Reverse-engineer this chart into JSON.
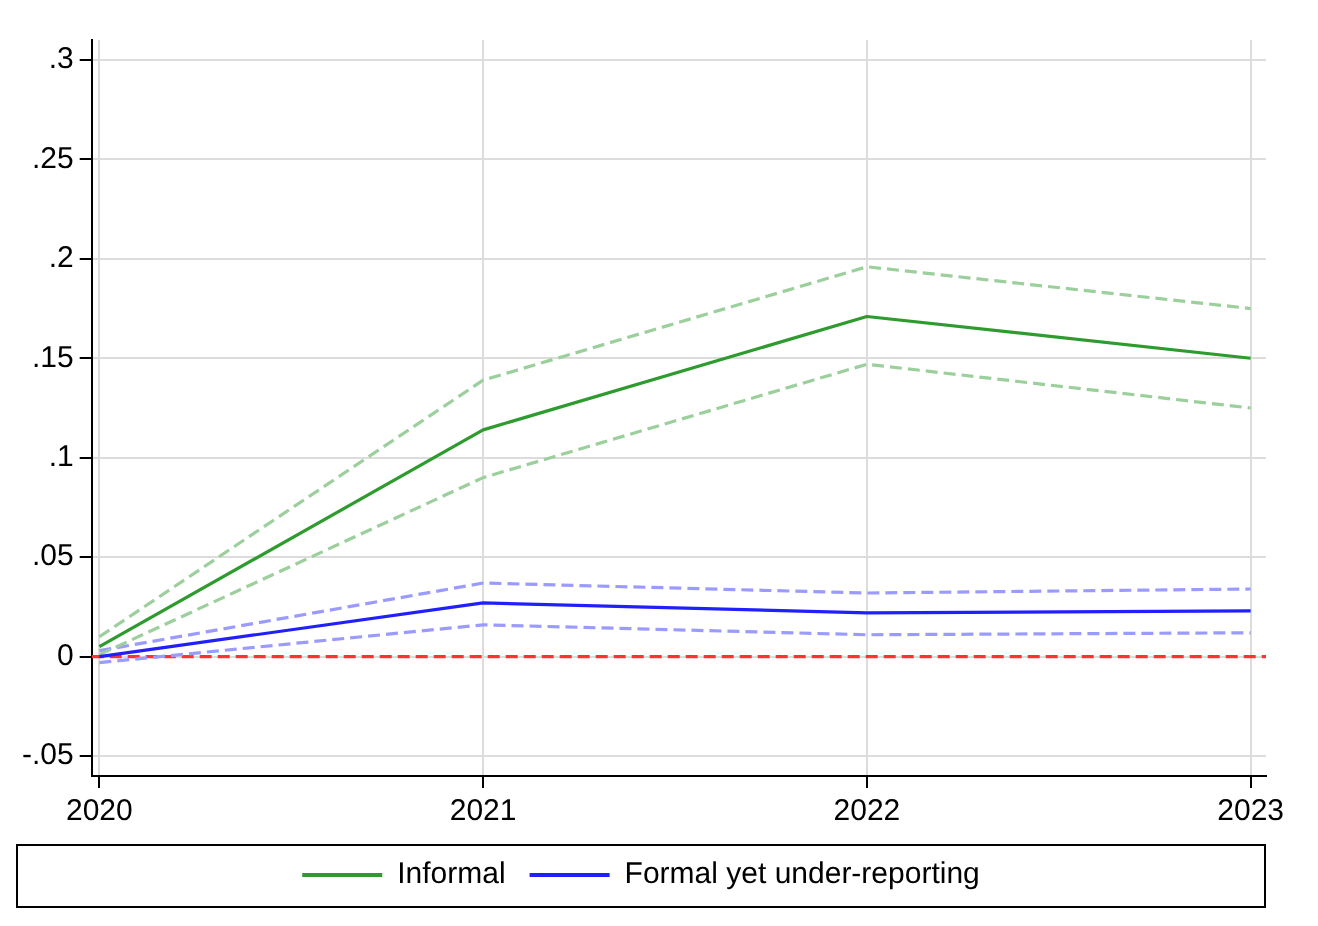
{
  "chart_data": {
    "type": "line",
    "x": [
      2020,
      2021,
      2022,
      2023
    ],
    "series": [
      {
        "name": "Informal",
        "color": "#2e9b2e",
        "values": [
          0.005,
          0.114,
          0.171,
          0.15
        ]
      },
      {
        "name": "Formal yet under-reporting",
        "color": "#2020ff",
        "values": [
          0,
          0.027,
          0.022,
          0.023
        ]
      },
      {
        "color": "#9bcf9b",
        "line_style": "dashed",
        "values": [
          0.001,
          0.09,
          0.147,
          0.125
        ]
      },
      {
        "color": "#9bcf9b",
        "line_style": "dashed",
        "values": [
          0.01,
          0.139,
          0.196,
          0.175
        ]
      },
      {
        "color": "#9b9bff",
        "line_style": "dashed",
        "values": [
          -0.003,
          0.016,
          0.011,
          0.012
        ]
      },
      {
        "color": "#9b9bff",
        "line_style": "dashed",
        "values": [
          0.003,
          0.037,
          0.032,
          0.034
        ]
      }
    ],
    "xlim": [
      2019.98,
      2023.04
    ],
    "xticks": [
      2020,
      2021,
      2022,
      2023
    ],
    "ylim": [
      -0.06,
      0.31
    ],
    "yticks": [
      {
        "value": -0.05,
        "label": "-.05"
      },
      0,
      {
        "value": 0.05,
        "label": ".05"
      },
      {
        "value": 0.1,
        "label": ".1"
      },
      {
        "value": 0.15,
        "label": ".15"
      },
      {
        "value": 0.2,
        "label": ".2"
      },
      {
        "value": 0.25,
        "label": ".25"
      },
      {
        "value": 0.3,
        "label": ".3"
      }
    ],
    "ref_lines": [
      {
        "axis": "y",
        "value": 0,
        "color": "#ff3333",
        "line_style": "dashed"
      }
    ],
    "grid": true,
    "legend": "bottom",
    "line_style": "solid",
    "marker": "none"
  }
}
